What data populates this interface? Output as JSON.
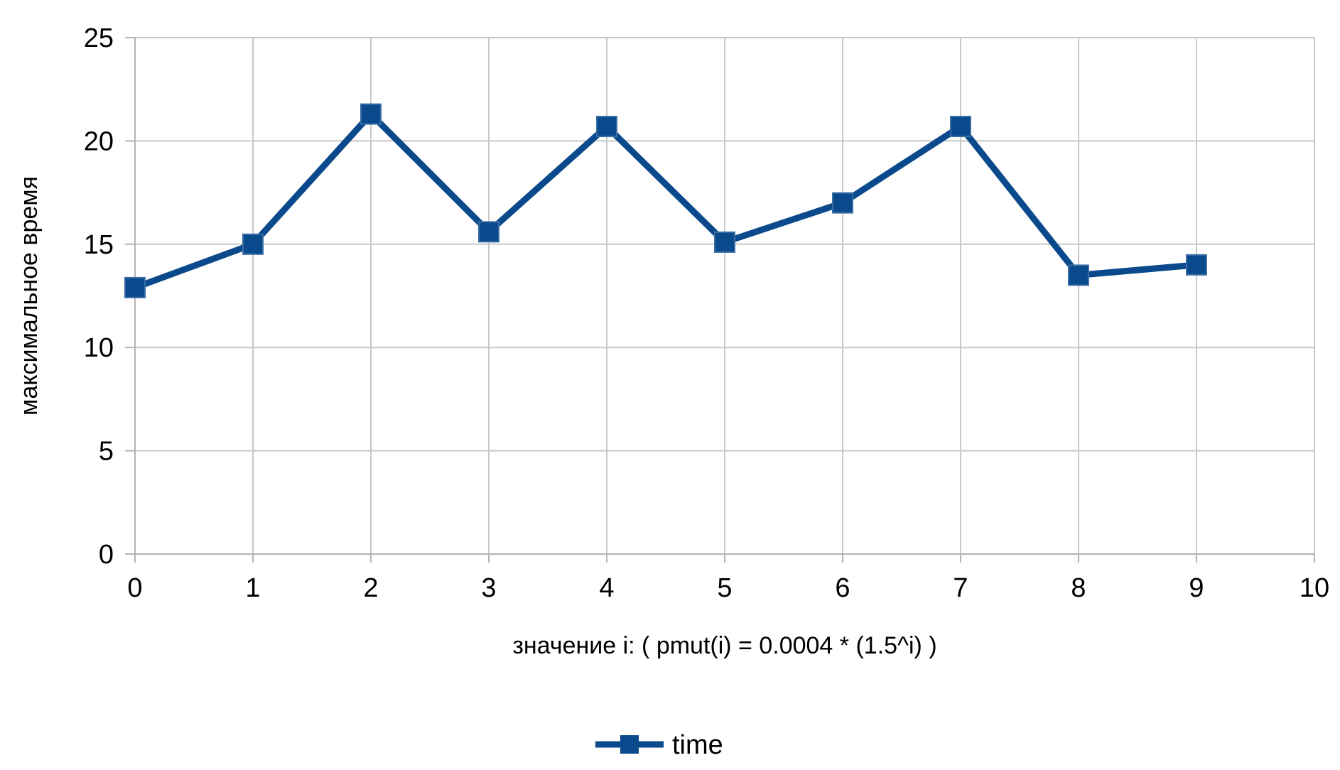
{
  "chart_data": {
    "type": "line",
    "title": "",
    "xlabel": "значение i: ( pmut(i) = 0.0004 * (1.5^i) )",
    "ylabel": "максимальное время",
    "xlim": [
      0,
      10
    ],
    "ylim": [
      0,
      25
    ],
    "x_ticks": [
      "0",
      "1",
      "2",
      "3",
      "4",
      "5",
      "6",
      "7",
      "8",
      "9",
      "10"
    ],
    "y_ticks": [
      "0",
      "5",
      "10",
      "15",
      "20",
      "25"
    ],
    "grid": true,
    "legend_position": "bottom-center",
    "series": [
      {
        "name": "time",
        "color": "#0a4a8c",
        "marker": "square",
        "x": [
          0,
          1,
          2,
          3,
          4,
          5,
          6,
          7,
          8,
          9
        ],
        "values": [
          12.9,
          15.0,
          21.3,
          15.6,
          20.7,
          15.1,
          17.0,
          20.7,
          13.5,
          14.0
        ]
      }
    ]
  }
}
